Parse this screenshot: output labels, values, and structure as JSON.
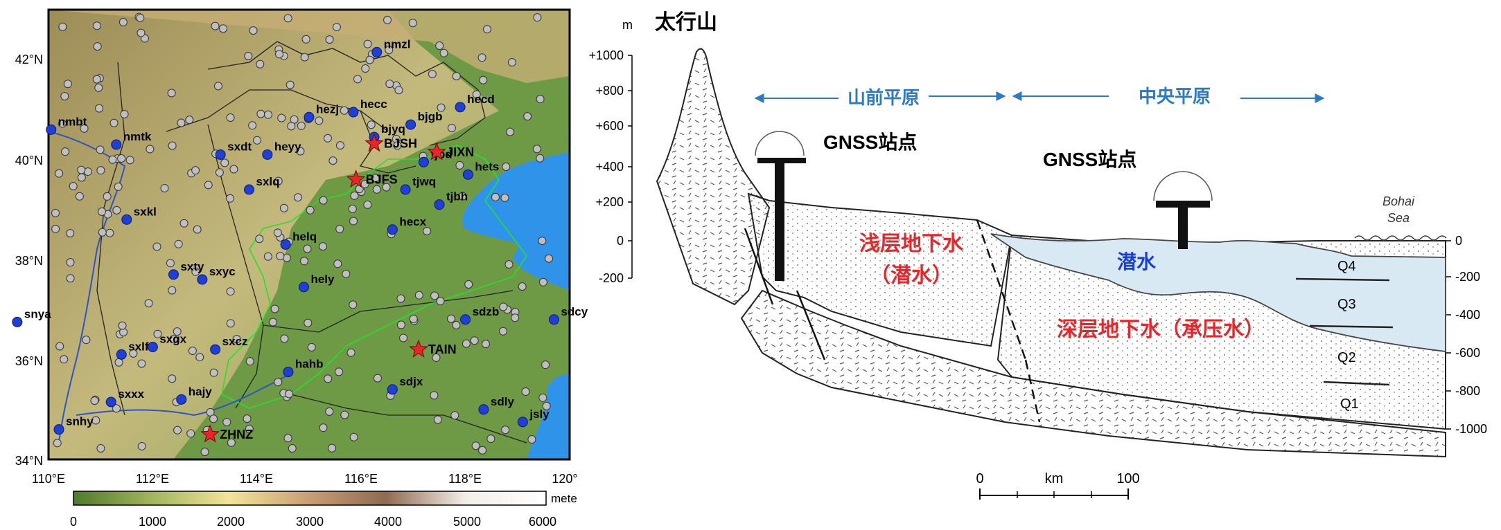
{
  "map": {
    "lat_ticks": [
      "42°N",
      "40°N",
      "38°N",
      "36°N",
      "34°N"
    ],
    "lon_ticks": [
      "110°E",
      "112°E",
      "114°E",
      "116°E",
      "118°E",
      "120°"
    ],
    "colorbar": {
      "unit": "mete",
      "ticks": [
        "0",
        "1000",
        "2000",
        "3000",
        "4000",
        "5000",
        "6000"
      ],
      "colors": [
        "#4f7a2c",
        "#9fb35a",
        "#f2e49a",
        "#c99d74",
        "#8f6a52",
        "#f4eee8",
        "#ffffff"
      ]
    },
    "colors": {
      "land": "#6f9a45",
      "sea": "#2f93ea",
      "blue_station": "#1f3fd6",
      "grey_station": "#bfbfbf",
      "star": "#e8262a",
      "river": "#2f53c4",
      "boundary": "#26e02b"
    },
    "blue_stations": [
      {
        "label": "nmzl",
        "lon": 116.3,
        "lat": 42.15
      },
      {
        "label": "nmbt",
        "lon": 110.05,
        "lat": 40.6
      },
      {
        "label": "nmtk",
        "lon": 111.3,
        "lat": 40.3
      },
      {
        "label": "hezj",
        "lon": 115.0,
        "lat": 40.85
      },
      {
        "label": "hecc",
        "lon": 115.85,
        "lat": 40.95
      },
      {
        "label": "hecd",
        "lon": 117.9,
        "lat": 41.05
      },
      {
        "label": "bjgb",
        "lon": 116.95,
        "lat": 40.7
      },
      {
        "label": "bjyq",
        "lon": 116.25,
        "lat": 40.45
      },
      {
        "label": "sxdt",
        "lon": 113.3,
        "lat": 40.1
      },
      {
        "label": "heyy",
        "lon": 114.2,
        "lat": 40.1
      },
      {
        "label": "tjbd",
        "lon": 117.2,
        "lat": 39.95
      },
      {
        "label": "hets",
        "lon": 118.05,
        "lat": 39.7
      },
      {
        "label": "sxlq",
        "lon": 113.85,
        "lat": 39.4
      },
      {
        "label": "tjwq",
        "lon": 116.85,
        "lat": 39.4
      },
      {
        "label": "tjbh",
        "lon": 117.5,
        "lat": 39.1
      },
      {
        "label": "sxkl",
        "lon": 111.5,
        "lat": 38.8
      },
      {
        "label": "hecx",
        "lon": 116.6,
        "lat": 38.6
      },
      {
        "label": "helq",
        "lon": 114.55,
        "lat": 38.3
      },
      {
        "label": "sxty",
        "lon": 112.4,
        "lat": 37.7
      },
      {
        "label": "sxyc",
        "lon": 112.95,
        "lat": 37.6
      },
      {
        "label": "hely",
        "lon": 114.9,
        "lat": 37.45
      },
      {
        "label": "sdzb",
        "lon": 118.0,
        "lat": 36.8
      },
      {
        "label": "sdcy",
        "lon": 119.7,
        "lat": 36.8
      },
      {
        "label": "snya",
        "lon": 109.4,
        "lat": 36.75
      },
      {
        "label": "sxgx",
        "lon": 112.0,
        "lat": 36.25
      },
      {
        "label": "sxcz",
        "lon": 113.2,
        "lat": 36.2
      },
      {
        "label": "sxlf",
        "lon": 111.4,
        "lat": 36.1
      },
      {
        "label": "hahb",
        "lon": 114.6,
        "lat": 35.75
      },
      {
        "label": "sdjx",
        "lon": 116.6,
        "lat": 35.4
      },
      {
        "label": "sxxx",
        "lon": 111.2,
        "lat": 35.15
      },
      {
        "label": "hajy",
        "lon": 112.55,
        "lat": 35.2
      },
      {
        "label": "sdly",
        "lon": 118.35,
        "lat": 35.0
      },
      {
        "label": "jsly",
        "lon": 119.1,
        "lat": 34.75
      },
      {
        "label": "snhy",
        "lon": 110.2,
        "lat": 34.6
      }
    ],
    "stars": [
      {
        "label": "BJSH",
        "lon": 116.25,
        "lat": 40.32
      },
      {
        "label": "JIXN",
        "lon": 117.45,
        "lat": 40.15
      },
      {
        "label": "BJFS",
        "lon": 115.9,
        "lat": 39.6
      },
      {
        "label": "TAIN",
        "lon": 117.1,
        "lat": 36.2
      },
      {
        "label": "ZHNZ",
        "lon": 113.1,
        "lat": 34.5
      }
    ]
  },
  "section": {
    "mountain_label": "太行山",
    "elev_unit": "m",
    "left_ticks": [
      "+1000",
      "+800",
      "+600",
      "+400",
      "+200",
      "0",
      "-200"
    ],
    "right_ticks": [
      "0",
      "-200",
      "-400",
      "-600",
      "-800",
      "-1000"
    ],
    "plain_front": "山前平原",
    "central_plain": "中央平原",
    "gnss_label_1": "GNSS站点",
    "gnss_label_2": "GNSS站点",
    "sea_label_1": "Bohai",
    "sea_label_2": "Sea",
    "shallow_line1": "浅层地下水",
    "shallow_line2": "（潜水）",
    "phreatic": "潜水",
    "deep": "深层地下水（承压水）",
    "layers": [
      "Q4",
      "Q3",
      "Q2",
      "Q1"
    ],
    "scale": {
      "start": "0",
      "unit": "km",
      "end": "100"
    },
    "colors": {
      "arrow_blue": "#2a7bc4",
      "red_text": "#e8262a",
      "blue_text": "#1a3fd6",
      "water": "#d8e9f4",
      "rock": "#444444"
    }
  }
}
